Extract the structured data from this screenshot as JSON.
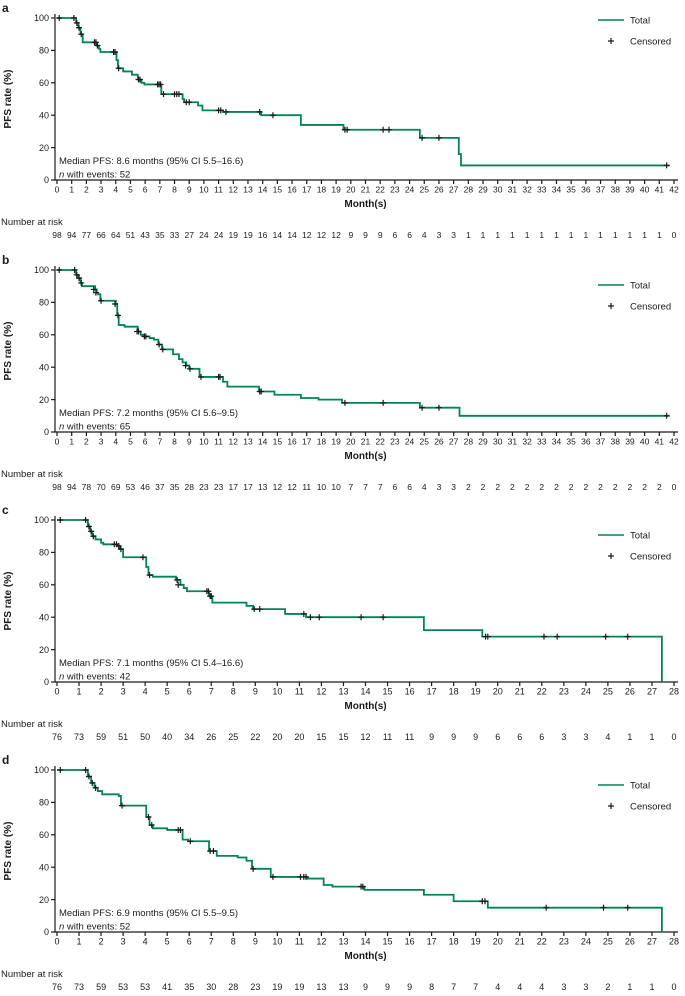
{
  "figure": {
    "ylabel": "PFS rate (%)",
    "xlabel": "Month(s)",
    "risk_label": "Number at risk",
    "legend": {
      "total": "Total",
      "censored": "Censored"
    },
    "colors": {
      "curve": "#00845A",
      "censor": "#1a1a1a",
      "axis": "#1a1a1a",
      "text": "#1a1a1a"
    }
  },
  "chart_data": [
    {
      "type": "line",
      "panel": "a",
      "ylabel": "PFS rate (%)",
      "xlabel": "Month(s)",
      "xlim": [
        0,
        42
      ],
      "ylim": [
        0,
        100
      ],
      "yticks": [
        0,
        20,
        40,
        60,
        80,
        100
      ],
      "xtick_step": 1,
      "annotation_line1": "Median PFS: 8.6 months (95% CI 5.5–16.6)",
      "annotation_italic": "n",
      "annotation_line2": " with events: 52",
      "curve_steps": [
        [
          0,
          100
        ],
        [
          1.3,
          97
        ],
        [
          1.45,
          94
        ],
        [
          1.6,
          90
        ],
        [
          1.75,
          85
        ],
        [
          2.7,
          83
        ],
        [
          2.85,
          81
        ],
        [
          2.95,
          79
        ],
        [
          4.05,
          74
        ],
        [
          4.15,
          69
        ],
        [
          4.5,
          67
        ],
        [
          5.1,
          65
        ],
        [
          5.5,
          62
        ],
        [
          5.75,
          60
        ],
        [
          5.95,
          59
        ],
        [
          7.1,
          53
        ],
        [
          8.55,
          50
        ],
        [
          8.65,
          48
        ],
        [
          9.6,
          46
        ],
        [
          9.9,
          43
        ],
        [
          11.3,
          42
        ],
        [
          13.9,
          40
        ],
        [
          16.6,
          34
        ],
        [
          19.5,
          31
        ],
        [
          24.7,
          26
        ],
        [
          27.35,
          16
        ],
        [
          27.5,
          9
        ]
      ],
      "curve_end": 41.7,
      "censored": [
        [
          0.15,
          100
        ],
        [
          1.15,
          100
        ],
        [
          1.35,
          97
        ],
        [
          1.5,
          94
        ],
        [
          1.65,
          90
        ],
        [
          2.55,
          85
        ],
        [
          2.65,
          85
        ],
        [
          2.75,
          83
        ],
        [
          3.85,
          79
        ],
        [
          3.95,
          79
        ],
        [
          4.2,
          69
        ],
        [
          5.55,
          62
        ],
        [
          5.65,
          62
        ],
        [
          6.85,
          59
        ],
        [
          6.95,
          59
        ],
        [
          7.05,
          59
        ],
        [
          7.25,
          53
        ],
        [
          8.0,
          53
        ],
        [
          8.15,
          53
        ],
        [
          8.3,
          53
        ],
        [
          8.8,
          48
        ],
        [
          9.0,
          48
        ],
        [
          11.0,
          43
        ],
        [
          11.15,
          43
        ],
        [
          11.5,
          42
        ],
        [
          13.8,
          42
        ],
        [
          14.7,
          40
        ],
        [
          19.6,
          31
        ],
        [
          19.75,
          31
        ],
        [
          22.2,
          31
        ],
        [
          22.6,
          31
        ],
        [
          24.85,
          26
        ],
        [
          26.0,
          26
        ],
        [
          41.5,
          9
        ]
      ],
      "risk_counts": [
        98,
        94,
        77,
        66,
        64,
        51,
        43,
        35,
        33,
        27,
        24,
        24,
        19,
        19,
        16,
        14,
        14,
        12,
        12,
        12,
        9,
        9,
        9,
        6,
        6,
        4,
        3,
        3,
        1,
        1,
        1,
        1,
        1,
        1,
        1,
        1,
        1,
        1,
        1,
        1,
        1,
        1,
        0
      ]
    },
    {
      "type": "line",
      "panel": "b",
      "ylabel": "PFS rate (%)",
      "xlabel": "Month(s)",
      "xlim": [
        0,
        42
      ],
      "ylim": [
        0,
        100
      ],
      "yticks": [
        0,
        20,
        40,
        60,
        80,
        100
      ],
      "xtick_step": 1,
      "annotation_line1": "Median PFS: 7.2 months (95% CI 5.6–9.5)",
      "annotation_italic": "n",
      "annotation_line2": " with events: 65",
      "curve_steps": [
        [
          0,
          100
        ],
        [
          1.3,
          97
        ],
        [
          1.45,
          95
        ],
        [
          1.6,
          92
        ],
        [
          1.7,
          90
        ],
        [
          2.6,
          88
        ],
        [
          2.7,
          86
        ],
        [
          2.8,
          85
        ],
        [
          2.95,
          81
        ],
        [
          4.0,
          79
        ],
        [
          4.1,
          72
        ],
        [
          4.2,
          66
        ],
        [
          4.6,
          65
        ],
        [
          5.5,
          62
        ],
        [
          5.7,
          60
        ],
        [
          5.9,
          59
        ],
        [
          6.3,
          58
        ],
        [
          6.6,
          57
        ],
        [
          6.9,
          54
        ],
        [
          7.15,
          51
        ],
        [
          7.9,
          48
        ],
        [
          8.3,
          45
        ],
        [
          8.55,
          43
        ],
        [
          8.8,
          41
        ],
        [
          9.0,
          39
        ],
        [
          9.7,
          34
        ],
        [
          11.3,
          31
        ],
        [
          11.6,
          28
        ],
        [
          13.75,
          25
        ],
        [
          14.8,
          23
        ],
        [
          16.6,
          21
        ],
        [
          17.8,
          20
        ],
        [
          19.4,
          18
        ],
        [
          24.7,
          15
        ],
        [
          27.4,
          10
        ]
      ],
      "curve_end": 41.7,
      "censored": [
        [
          0.15,
          100
        ],
        [
          1.2,
          100
        ],
        [
          1.35,
          97
        ],
        [
          1.5,
          95
        ],
        [
          1.65,
          92
        ],
        [
          2.5,
          88
        ],
        [
          2.65,
          86
        ],
        [
          3.0,
          81
        ],
        [
          3.95,
          79
        ],
        [
          4.15,
          72
        ],
        [
          5.45,
          62
        ],
        [
          5.55,
          62
        ],
        [
          5.95,
          59
        ],
        [
          6.05,
          59
        ],
        [
          6.95,
          54
        ],
        [
          7.2,
          51
        ],
        [
          8.75,
          41
        ],
        [
          9.05,
          39
        ],
        [
          9.8,
          34
        ],
        [
          11.0,
          34
        ],
        [
          11.1,
          34
        ],
        [
          13.8,
          25
        ],
        [
          13.9,
          25
        ],
        [
          19.6,
          18
        ],
        [
          22.2,
          18
        ],
        [
          24.85,
          15
        ],
        [
          26.0,
          15
        ],
        [
          41.5,
          10
        ]
      ],
      "risk_counts": [
        98,
        94,
        78,
        70,
        69,
        53,
        46,
        37,
        35,
        28,
        23,
        23,
        17,
        17,
        13,
        12,
        12,
        11,
        10,
        10,
        7,
        7,
        7,
        6,
        6,
        4,
        3,
        3,
        2,
        2,
        2,
        2,
        2,
        2,
        2,
        2,
        2,
        2,
        2,
        2,
        2,
        2,
        0
      ]
    },
    {
      "type": "line",
      "panel": "c",
      "ylabel": "PFS rate (%)",
      "xlabel": "Month(s)",
      "xlim": [
        0,
        28
      ],
      "ylim": [
        0,
        100
      ],
      "yticks": [
        0,
        20,
        40,
        60,
        80,
        100
      ],
      "xtick_step": 1,
      "annotation_line1": "Median PFS: 7.1 months (95% CI 5.4–16.6)",
      "annotation_italic": "n",
      "annotation_line2": " with events: 42",
      "curve_steps": [
        [
          0,
          100
        ],
        [
          1.4,
          96
        ],
        [
          1.5,
          93
        ],
        [
          1.6,
          90
        ],
        [
          1.75,
          88
        ],
        [
          2.0,
          86
        ],
        [
          2.1,
          85
        ],
        [
          2.75,
          84
        ],
        [
          2.85,
          82
        ],
        [
          3.0,
          77
        ],
        [
          4.05,
          71
        ],
        [
          4.15,
          66
        ],
        [
          4.35,
          65
        ],
        [
          5.4,
          63
        ],
        [
          5.6,
          60
        ],
        [
          5.75,
          58
        ],
        [
          5.9,
          56
        ],
        [
          6.9,
          53
        ],
        [
          7.05,
          49
        ],
        [
          8.6,
          47
        ],
        [
          8.9,
          45
        ],
        [
          10.35,
          42
        ],
        [
          11.3,
          40
        ],
        [
          16.65,
          32
        ],
        [
          19.3,
          28
        ],
        [
          27.45,
          0
        ]
      ],
      "curve_end": null,
      "censored": [
        [
          0.15,
          100
        ],
        [
          1.3,
          100
        ],
        [
          1.45,
          96
        ],
        [
          1.55,
          93
        ],
        [
          1.65,
          90
        ],
        [
          2.6,
          85
        ],
        [
          2.7,
          85
        ],
        [
          2.8,
          84
        ],
        [
          2.9,
          82
        ],
        [
          3.9,
          77
        ],
        [
          4.2,
          66
        ],
        [
          5.45,
          63
        ],
        [
          5.5,
          60
        ],
        [
          6.8,
          56
        ],
        [
          6.87,
          56
        ],
        [
          6.95,
          53
        ],
        [
          7.0,
          53
        ],
        [
          8.95,
          45
        ],
        [
          9.2,
          45
        ],
        [
          11.2,
          42
        ],
        [
          11.5,
          40
        ],
        [
          11.9,
          40
        ],
        [
          13.8,
          40
        ],
        [
          14.8,
          40
        ],
        [
          19.45,
          28
        ],
        [
          19.55,
          28
        ],
        [
          22.1,
          28
        ],
        [
          22.7,
          28
        ],
        [
          24.9,
          28
        ],
        [
          25.9,
          28
        ]
      ],
      "risk_counts": [
        76,
        73,
        59,
        51,
        50,
        40,
        34,
        26,
        25,
        22,
        20,
        20,
        15,
        15,
        12,
        11,
        11,
        9,
        9,
        9,
        6,
        6,
        6,
        3,
        3,
        4,
        1,
        1,
        0
      ]
    },
    {
      "type": "line",
      "panel": "d",
      "ylabel": "PFS rate (%)",
      "xlabel": "Month(s)",
      "xlim": [
        0,
        28
      ],
      "ylim": [
        0,
        100
      ],
      "yticks": [
        0,
        20,
        40,
        60,
        80,
        100
      ],
      "xtick_step": 1,
      "annotation_line1": "Median PFS: 6.9 months (95% CI 5.5–9.5)",
      "annotation_italic": "n",
      "annotation_line2": " with events: 52",
      "curve_steps": [
        [
          0,
          100
        ],
        [
          1.4,
          96
        ],
        [
          1.55,
          92
        ],
        [
          1.7,
          89
        ],
        [
          1.85,
          87
        ],
        [
          2.05,
          85
        ],
        [
          2.8,
          84
        ],
        [
          2.9,
          78
        ],
        [
          4.05,
          71
        ],
        [
          4.2,
          66
        ],
        [
          4.35,
          64
        ],
        [
          5.0,
          63
        ],
        [
          5.7,
          57
        ],
        [
          5.95,
          56
        ],
        [
          6.9,
          50
        ],
        [
          7.25,
          47
        ],
        [
          8.2,
          46
        ],
        [
          8.6,
          44
        ],
        [
          8.85,
          39
        ],
        [
          9.7,
          34
        ],
        [
          11.35,
          33
        ],
        [
          12.1,
          29
        ],
        [
          12.5,
          28
        ],
        [
          13.95,
          26
        ],
        [
          16.65,
          23
        ],
        [
          18.0,
          19
        ],
        [
          19.55,
          15
        ],
        [
          27.45,
          0
        ]
      ],
      "curve_end": null,
      "censored": [
        [
          0.15,
          100
        ],
        [
          1.3,
          100
        ],
        [
          1.45,
          96
        ],
        [
          1.6,
          92
        ],
        [
          1.75,
          89
        ],
        [
          2.95,
          78
        ],
        [
          4.15,
          71
        ],
        [
          4.3,
          66
        ],
        [
          5.5,
          63
        ],
        [
          5.6,
          63
        ],
        [
          6.05,
          56
        ],
        [
          6.95,
          50
        ],
        [
          7.1,
          50
        ],
        [
          8.9,
          39
        ],
        [
          9.8,
          34
        ],
        [
          11.05,
          34
        ],
        [
          11.2,
          34
        ],
        [
          11.3,
          34
        ],
        [
          13.8,
          28
        ],
        [
          13.88,
          28
        ],
        [
          19.3,
          19
        ],
        [
          19.42,
          19
        ],
        [
          22.2,
          15
        ],
        [
          24.8,
          15
        ],
        [
          25.9,
          15
        ]
      ],
      "risk_counts": [
        76,
        73,
        59,
        53,
        53,
        41,
        35,
        30,
        28,
        23,
        19,
        19,
        13,
        13,
        9,
        9,
        9,
        8,
        7,
        7,
        4,
        4,
        4,
        3,
        3,
        2,
        1,
        1,
        0
      ]
    }
  ]
}
